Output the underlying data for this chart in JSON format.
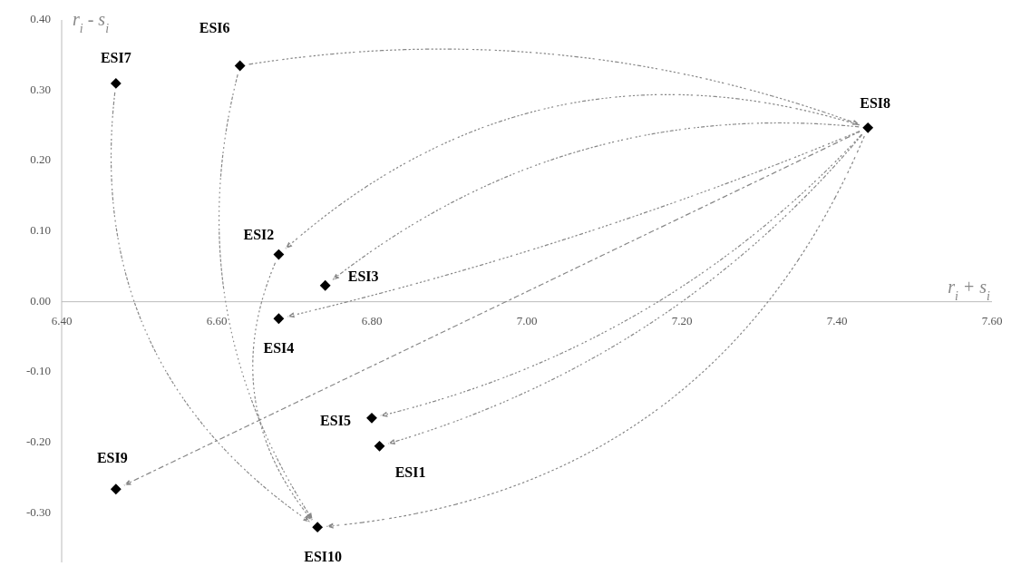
{
  "chart_data": {
    "type": "scatter",
    "xlabel": "r$_{i}$ + s$_{i}$",
    "ylabel": "r$_{i}$ - s$_{i}$",
    "marker": "diamond",
    "grid": false,
    "xlim": [
      6.4,
      7.6
    ],
    "ylim": [
      -0.37,
      0.4
    ],
    "xticks": [
      {
        "value": 6.4,
        "label": "6.40"
      },
      {
        "value": 6.6,
        "label": "6.60"
      },
      {
        "value": 6.8,
        "label": "6.80"
      },
      {
        "value": 7.0,
        "label": "7.00"
      },
      {
        "value": 7.2,
        "label": "7.20"
      },
      {
        "value": 7.4,
        "label": "7.40"
      },
      {
        "value": 7.6,
        "label": "7.60"
      }
    ],
    "yticks": [
      {
        "value": -0.3,
        "label": "-0.30"
      },
      {
        "value": -0.2,
        "label": "-0.20"
      },
      {
        "value": -0.1,
        "label": "-0.10"
      },
      {
        "value": 0,
        "label": "0.00"
      },
      {
        "value": 0.1,
        "label": "0.10"
      },
      {
        "value": 0.2,
        "label": "0.20"
      },
      {
        "value": 0.3,
        "label": "0.30"
      },
      {
        "value": 0.4,
        "label": "0.40"
      }
    ],
    "series": [
      {
        "name": "ESI1",
        "color": "#000000",
        "x": [
          6.81
        ],
        "values": [
          -0.205
        ]
      },
      {
        "name": "ESI2",
        "color": "#000000",
        "x": [
          6.68
        ],
        "values": [
          0.067
        ]
      },
      {
        "name": "ESI3",
        "color": "#000000",
        "x": [
          6.74
        ],
        "values": [
          0.023
        ]
      },
      {
        "name": "ESI4",
        "color": "#000000",
        "x": [
          6.68
        ],
        "values": [
          -0.024
        ]
      },
      {
        "name": "ESI5",
        "color": "#000000",
        "x": [
          6.8
        ],
        "values": [
          -0.165
        ]
      },
      {
        "name": "ESI6",
        "color": "#000000",
        "x": [
          6.63
        ],
        "values": [
          0.335
        ]
      },
      {
        "name": "ESI7",
        "color": "#000000",
        "x": [
          6.47
        ],
        "values": [
          0.31
        ]
      },
      {
        "name": "ESI8",
        "color": "#000000",
        "x": [
          7.44
        ],
        "values": [
          0.247
        ]
      },
      {
        "name": "ESI9",
        "color": "#000000",
        "x": [
          6.47
        ],
        "values": [
          -0.266
        ]
      },
      {
        "name": "ESI10",
        "color": "#000000",
        "x": [
          6.73
        ],
        "values": [
          -0.32
        ]
      }
    ]
  }
}
